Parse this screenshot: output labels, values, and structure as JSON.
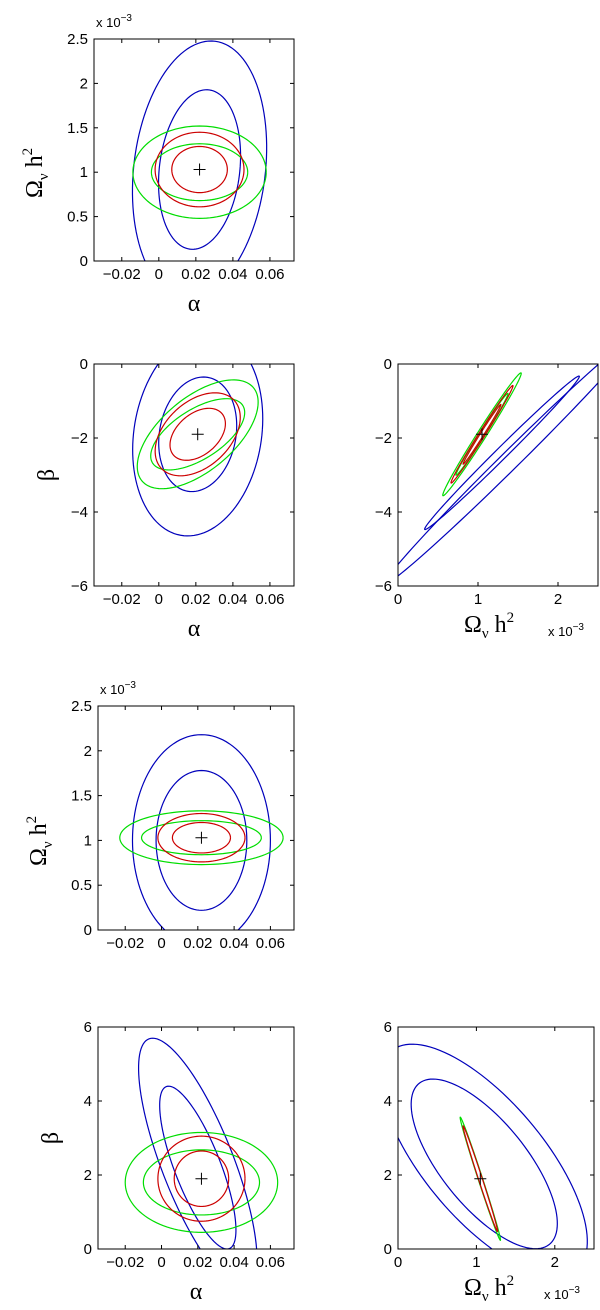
{
  "colors": {
    "blue": "#0000bb",
    "green": "#00dd00",
    "red": "#cc0000",
    "axis": "#000000"
  },
  "labels": {
    "alpha": "α",
    "beta": "β",
    "omega": "Ω",
    "nu": "ν",
    "h": "h",
    "squared": "2",
    "exp_base": "x 10",
    "exp_power": "−3"
  },
  "chart_data": [
    {
      "id": "p1",
      "type": "contour",
      "xlabel": "α",
      "ylabel": "Ω_ν h^2",
      "xlim": [
        -0.035,
        0.073
      ],
      "ylim": [
        0,
        2.5
      ],
      "xticks": [
        -0.02,
        0,
        0.02,
        0.04,
        0.06
      ],
      "xticklabels": [
        "−0.02",
        "0",
        "0.02",
        "0.04",
        "0.06"
      ],
      "yticks": [
        0,
        0.5,
        1,
        1.5,
        2,
        2.5
      ],
      "yticklabels": [
        "0",
        "0.5",
        "1",
        "1.5",
        "2",
        "2.5"
      ],
      "y_exponent": "x 10^-3",
      "center": [
        0.022,
        1.03
      ],
      "ellipses": [
        {
          "color": "blue",
          "cx": 0.022,
          "cy": 1.03,
          "rx": 0.036,
          "ry": 1.45,
          "rot": 4
        },
        {
          "color": "blue",
          "cx": 0.022,
          "cy": 1.03,
          "rx": 0.022,
          "ry": 0.9,
          "rot": 4
        },
        {
          "color": "green",
          "cx": 0.022,
          "cy": 1.0,
          "rx": 0.036,
          "ry": 0.52,
          "rot": 0
        },
        {
          "color": "green",
          "cx": 0.022,
          "cy": 1.0,
          "rx": 0.026,
          "ry": 0.32,
          "rot": 0
        },
        {
          "color": "red",
          "cx": 0.022,
          "cy": 1.03,
          "rx": 0.024,
          "ry": 0.42,
          "rot": 0
        },
        {
          "color": "red",
          "cx": 0.022,
          "cy": 1.03,
          "rx": 0.015,
          "ry": 0.26,
          "rot": 0
        }
      ]
    },
    {
      "id": "p2",
      "type": "contour",
      "xlabel": "α",
      "ylabel": "β",
      "xlim": [
        -0.035,
        0.073
      ],
      "ylim": [
        -6,
        0
      ],
      "xticks": [
        -0.02,
        0,
        0.02,
        0.04,
        0.06
      ],
      "xticklabels": [
        "−0.02",
        "0",
        "0.02",
        "0.04",
        "0.06"
      ],
      "yticks": [
        -6,
        -4,
        -2,
        0
      ],
      "yticklabels": [
        "−6",
        "−4",
        "−2",
        "0"
      ],
      "center": [
        0.021,
        -1.9
      ],
      "ellipses": [
        {
          "color": "blue",
          "cx": 0.021,
          "cy": -1.9,
          "rx": 0.035,
          "ry": 2.75,
          "rot": 4
        },
        {
          "color": "blue",
          "cx": 0.021,
          "cy": -1.9,
          "rx": 0.021,
          "ry": 1.55,
          "rot": 4
        },
        {
          "color": "green",
          "cx": 0.021,
          "cy": -1.9,
          "rx": 0.033,
          "ry": 1.45,
          "rot": 18
        },
        {
          "color": "green",
          "cx": 0.021,
          "cy": -1.9,
          "rx": 0.026,
          "ry": 0.92,
          "rot": 18
        },
        {
          "color": "red",
          "cx": 0.021,
          "cy": -1.9,
          "rx": 0.023,
          "ry": 1.12,
          "rot": 12
        },
        {
          "color": "red",
          "cx": 0.021,
          "cy": -1.9,
          "rx": 0.015,
          "ry": 0.7,
          "rot": 12
        }
      ]
    },
    {
      "id": "p3",
      "type": "contour",
      "xlabel": "Ω_ν h^2",
      "ylabel": "",
      "xlim": [
        0,
        2.5
      ],
      "ylim": [
        -6,
        0
      ],
      "xticks": [
        0,
        1,
        2
      ],
      "xticklabels": [
        "0",
        "1",
        "2"
      ],
      "yticks": [
        -6,
        -4,
        -2,
        0
      ],
      "yticklabels": [
        "−6",
        "−4",
        "−2",
        "0"
      ],
      "x_exponent": "x 10^-3",
      "center": [
        1.05,
        -1.9
      ],
      "ellipses": [
        {
          "color": "blue",
          "cx": 1.4,
          "cy": -2.6,
          "rx": 1.65,
          "ry": 3.15,
          "rot": 42
        },
        {
          "color": "blue",
          "cx": 1.3,
          "cy": -2.4,
          "rx": 1.0,
          "ry": 2.0,
          "rot": 42
        },
        {
          "color": "green",
          "cx": 1.05,
          "cy": -1.9,
          "rx": 0.13,
          "ry": 1.95,
          "rot": 32
        },
        {
          "color": "green",
          "cx": 1.05,
          "cy": -1.9,
          "rx": 0.08,
          "ry": 1.3,
          "rot": 32
        },
        {
          "color": "red",
          "cx": 1.05,
          "cy": -1.9,
          "rx": 0.09,
          "ry": 1.55,
          "rot": 32
        },
        {
          "color": "red",
          "cx": 1.05,
          "cy": -1.9,
          "rx": 0.05,
          "ry": 0.95,
          "rot": 32
        }
      ]
    },
    {
      "id": "p4",
      "type": "contour",
      "xlabel": "",
      "ylabel": "Ω_ν h^2",
      "xlim": [
        -0.035,
        0.073
      ],
      "ylim": [
        0,
        2.5
      ],
      "xticks": [
        -0.02,
        0,
        0.02,
        0.04,
        0.06
      ],
      "xticklabels": [
        "−0.02",
        "0",
        "0.02",
        "0.04",
        "0.06"
      ],
      "yticks": [
        0,
        0.5,
        1,
        1.5,
        2,
        2.5
      ],
      "yticklabels": [
        "0",
        "0.5",
        "1",
        "1.5",
        "2",
        "2.5"
      ],
      "y_exponent": "x 10^-3",
      "center": [
        0.022,
        1.03
      ],
      "ellipses": [
        {
          "color": "blue",
          "cx": 0.022,
          "cy": 1.0,
          "rx": 0.038,
          "ry": 1.18,
          "rot": 0
        },
        {
          "color": "blue",
          "cx": 0.022,
          "cy": 1.0,
          "rx": 0.025,
          "ry": 0.78,
          "rot": 0
        },
        {
          "color": "green",
          "cx": 0.022,
          "cy": 1.03,
          "rx": 0.045,
          "ry": 0.3,
          "rot": 0
        },
        {
          "color": "green",
          "cx": 0.022,
          "cy": 1.03,
          "rx": 0.033,
          "ry": 0.19,
          "rot": 0
        },
        {
          "color": "red",
          "cx": 0.022,
          "cy": 1.03,
          "rx": 0.024,
          "ry": 0.27,
          "rot": 0
        },
        {
          "color": "red",
          "cx": 0.022,
          "cy": 1.03,
          "rx": 0.016,
          "ry": 0.17,
          "rot": 0
        }
      ]
    },
    {
      "id": "p5",
      "type": "contour",
      "xlabel": "α",
      "ylabel": "β",
      "xlim": [
        -0.035,
        0.073
      ],
      "ylim": [
        0,
        6
      ],
      "xticks": [
        -0.02,
        0,
        0.02,
        0.04,
        0.06
      ],
      "xticklabels": [
        "−0.02",
        "0",
        "0.02",
        "0.04",
        "0.06"
      ],
      "yticks": [
        0,
        2,
        4,
        6
      ],
      "yticklabels": [
        "0",
        "2",
        "4",
        "6"
      ],
      "center": [
        0.022,
        1.9
      ],
      "ellipses": [
        {
          "color": "blue",
          "cx": 0.02,
          "cy": 2.3,
          "rx": 0.025,
          "ry": 3.55,
          "rot": -18
        },
        {
          "color": "blue",
          "cx": 0.02,
          "cy": 2.2,
          "rx": 0.016,
          "ry": 2.3,
          "rot": -18
        },
        {
          "color": "green",
          "cx": 0.022,
          "cy": 1.8,
          "rx": 0.042,
          "ry": 1.35,
          "rot": 0
        },
        {
          "color": "green",
          "cx": 0.022,
          "cy": 1.8,
          "rx": 0.032,
          "ry": 0.88,
          "rot": 0
        },
        {
          "color": "red",
          "cx": 0.022,
          "cy": 1.9,
          "rx": 0.024,
          "ry": 1.15,
          "rot": 0
        },
        {
          "color": "red",
          "cx": 0.022,
          "cy": 1.9,
          "rx": 0.015,
          "ry": 0.75,
          "rot": 0
        }
      ]
    },
    {
      "id": "p6",
      "type": "contour",
      "xlabel": "Ω_ν h^2",
      "ylabel": "",
      "xlim": [
        0,
        2.5
      ],
      "ylim": [
        0,
        6
      ],
      "xticks": [
        0,
        1,
        2
      ],
      "xticklabels": [
        "0",
        "1",
        "2"
      ],
      "yticks": [
        0,
        2,
        4,
        6
      ],
      "yticklabels": [
        "0",
        "2",
        "4",
        "6"
      ],
      "x_exponent": "x 10^-3",
      "center": [
        1.05,
        1.9
      ],
      "ellipses": [
        {
          "color": "blue",
          "cx": 1.1,
          "cy": 2.4,
          "rx": 1.28,
          "ry": 3.2,
          "rot": -22
        },
        {
          "color": "blue",
          "cx": 1.1,
          "cy": 2.3,
          "rx": 0.9,
          "ry": 2.35,
          "rot": -22
        },
        {
          "color": "green",
          "cx": 1.05,
          "cy": 1.9,
          "rx": 0.035,
          "ry": 1.75,
          "rot": -18
        },
        {
          "color": "red",
          "cx": 1.05,
          "cy": 1.9,
          "rx": 0.03,
          "ry": 1.5,
          "rot": -18
        }
      ]
    }
  ]
}
